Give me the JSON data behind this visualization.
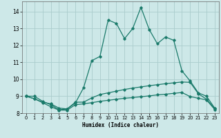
{
  "xlabel": "Humidex (Indice chaleur)",
  "background_color": "#cde8e8",
  "grid_color": "#aacccc",
  "line_color": "#1a7a6a",
  "xlim": [
    -0.5,
    23.5
  ],
  "ylim": [
    8.0,
    14.6
  ],
  "yticks": [
    8,
    9,
    10,
    11,
    12,
    13,
    14
  ],
  "xticks": [
    0,
    1,
    2,
    3,
    4,
    5,
    6,
    7,
    8,
    9,
    10,
    11,
    12,
    13,
    14,
    15,
    16,
    17,
    18,
    19,
    20,
    21,
    22,
    23
  ],
  "line1_x": [
    0,
    1,
    2,
    3,
    4,
    5,
    6,
    7,
    8,
    9,
    10,
    11,
    12,
    13,
    14,
    15,
    16,
    17,
    18,
    19,
    20,
    21,
    22,
    23
  ],
  "line1_y": [
    9.0,
    9.0,
    8.7,
    8.5,
    8.2,
    8.25,
    8.6,
    9.5,
    11.1,
    11.35,
    13.5,
    13.3,
    12.4,
    13.0,
    14.25,
    12.95,
    12.1,
    12.5,
    12.3,
    10.5,
    9.9,
    9.2,
    9.0,
    8.3
  ],
  "line2_x": [
    0,
    1,
    2,
    3,
    4,
    5,
    6,
    7,
    8,
    9,
    10,
    11,
    12,
    13,
    14,
    15,
    16,
    17,
    18,
    19,
    20,
    21,
    22,
    23
  ],
  "line2_y": [
    9.0,
    8.85,
    8.65,
    8.55,
    8.3,
    8.25,
    8.65,
    8.65,
    8.9,
    9.1,
    9.2,
    9.3,
    9.4,
    9.48,
    9.55,
    9.62,
    9.68,
    9.74,
    9.79,
    9.84,
    9.82,
    9.15,
    8.82,
    8.28
  ],
  "line3_x": [
    0,
    1,
    2,
    3,
    4,
    5,
    6,
    7,
    8,
    9,
    10,
    11,
    12,
    13,
    14,
    15,
    16,
    17,
    18,
    19,
    20,
    21,
    22,
    23
  ],
  "line3_y": [
    9.0,
    8.85,
    8.62,
    8.38,
    8.18,
    8.18,
    8.5,
    8.55,
    8.62,
    8.7,
    8.76,
    8.82,
    8.88,
    8.92,
    8.97,
    9.02,
    9.08,
    9.12,
    9.17,
    9.22,
    8.98,
    8.88,
    8.78,
    8.22
  ]
}
